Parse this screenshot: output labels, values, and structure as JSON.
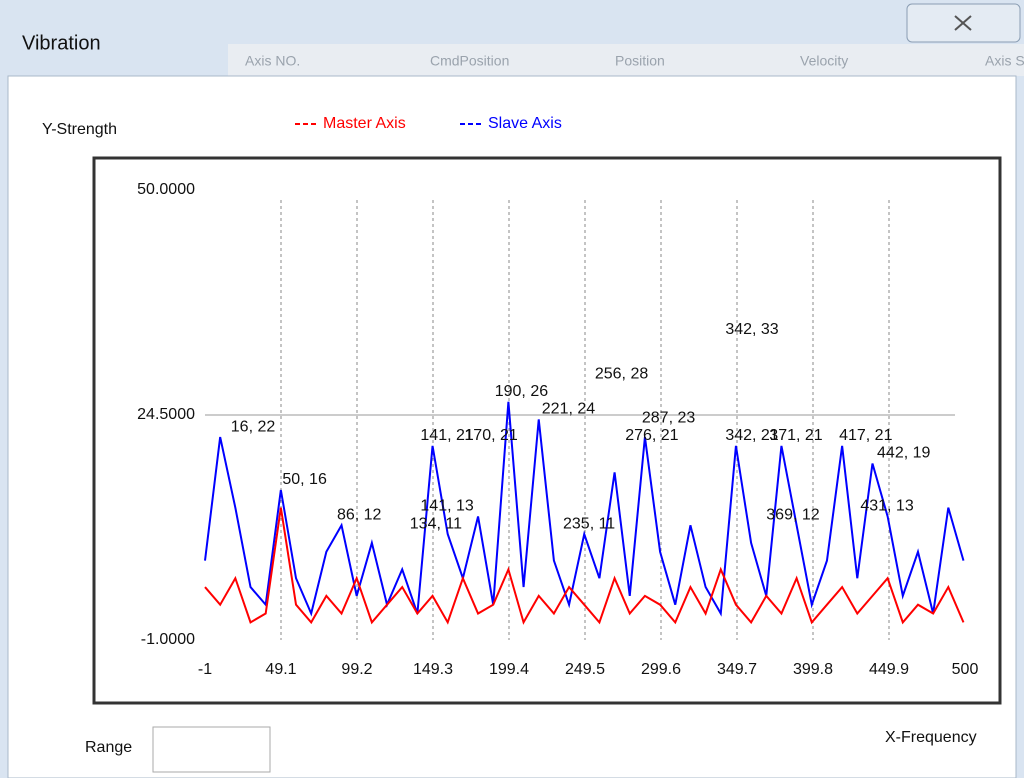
{
  "window": {
    "title": "Vibration",
    "background_headers": [
      "Axis NO.",
      "CmdPosition",
      "Position",
      "Velocity",
      "Axis State"
    ],
    "range_label": "Range"
  },
  "chart_data": {
    "type": "line",
    "ylabel": "Y-Strength",
    "xlabel": "X-Frequency",
    "x": [
      -1,
      9,
      19,
      29,
      39,
      49,
      59,
      69,
      79,
      89,
      99,
      109,
      119,
      129,
      139,
      149,
      159,
      169,
      179,
      189,
      199,
      209,
      219,
      229,
      239,
      249,
      259,
      269,
      279,
      289,
      299,
      309,
      319,
      329,
      339,
      349,
      359,
      369,
      379,
      389,
      399,
      409,
      419,
      429,
      439,
      449,
      459,
      469,
      479,
      489,
      499
    ],
    "series": [
      {
        "name": "Slave Axis",
        "color": "#0000ff",
        "values": [
          8,
          22,
          14,
          5,
          3,
          16,
          6,
          2,
          9,
          12,
          4,
          10,
          3,
          7,
          2,
          21,
          11,
          6,
          13,
          3,
          26,
          5,
          24,
          8,
          3,
          11,
          6,
          18,
          4,
          22,
          9,
          3,
          12,
          5,
          2,
          21,
          10,
          4,
          21,
          12,
          3,
          8,
          21,
          6,
          19,
          13,
          4,
          9,
          2,
          14,
          8
        ]
      },
      {
        "name": "Master Axis",
        "color": "#ff0000",
        "values": [
          5,
          3,
          6,
          1,
          2,
          14,
          3,
          1,
          4,
          2,
          6,
          1,
          3,
          5,
          2,
          4,
          1,
          6,
          2,
          3,
          7,
          1,
          4,
          2,
          5,
          3,
          1,
          6,
          2,
          4,
          3,
          1,
          5,
          2,
          7,
          3,
          1,
          4,
          2,
          6,
          1,
          3,
          5,
          2,
          4,
          6,
          1,
          3,
          2,
          5,
          1
        ]
      }
    ],
    "xlim": [
      -1,
      500
    ],
    "xticks": [
      -1,
      49.1,
      99.2,
      149.3,
      199.4,
      249.5,
      299.6,
      349.7,
      399.8,
      449.9,
      500
    ],
    "ylim": [
      -1,
      50
    ],
    "yticks": [
      {
        "value": -1,
        "label": "-1.0000"
      },
      {
        "value": 24.5,
        "label": "24.5000"
      },
      {
        "value": 50,
        "label": "50.0000"
      }
    ],
    "grid": true,
    "legend": "top",
    "annotations": [
      {
        "text": "16, 22",
        "x": 16,
        "y": 22
      },
      {
        "text": "50, 16",
        "x": 50,
        "y": 16
      },
      {
        "text": "86, 12",
        "x": 86,
        "y": 12
      },
      {
        "text": "141, 21",
        "x": 141,
        "y": 21
      },
      {
        "text": "170, 21",
        "x": 170,
        "y": 21
      },
      {
        "text": "141, 13",
        "x": 141,
        "y": 13
      },
      {
        "text": "134, 11",
        "x": 134,
        "y": 11
      },
      {
        "text": "190, 26",
        "x": 190,
        "y": 26
      },
      {
        "text": "221, 24",
        "x": 221,
        "y": 24
      },
      {
        "text": "256, 28",
        "x": 256,
        "y": 28
      },
      {
        "text": "287, 23",
        "x": 287,
        "y": 23
      },
      {
        "text": "276, 21",
        "x": 276,
        "y": 21
      },
      {
        "text": "235, 11",
        "x": 235,
        "y": 11
      },
      {
        "text": "342, 33",
        "x": 342,
        "y": 33
      },
      {
        "text": "342, 21",
        "x": 342,
        "y": 21
      },
      {
        "text": "371, 21",
        "x": 371,
        "y": 21
      },
      {
        "text": "369, 12",
        "x": 369,
        "y": 12
      },
      {
        "text": "417, 21",
        "x": 417,
        "y": 21
      },
      {
        "text": "442, 19",
        "x": 442,
        "y": 19
      },
      {
        "text": "431, 13",
        "x": 431,
        "y": 13
      }
    ]
  }
}
